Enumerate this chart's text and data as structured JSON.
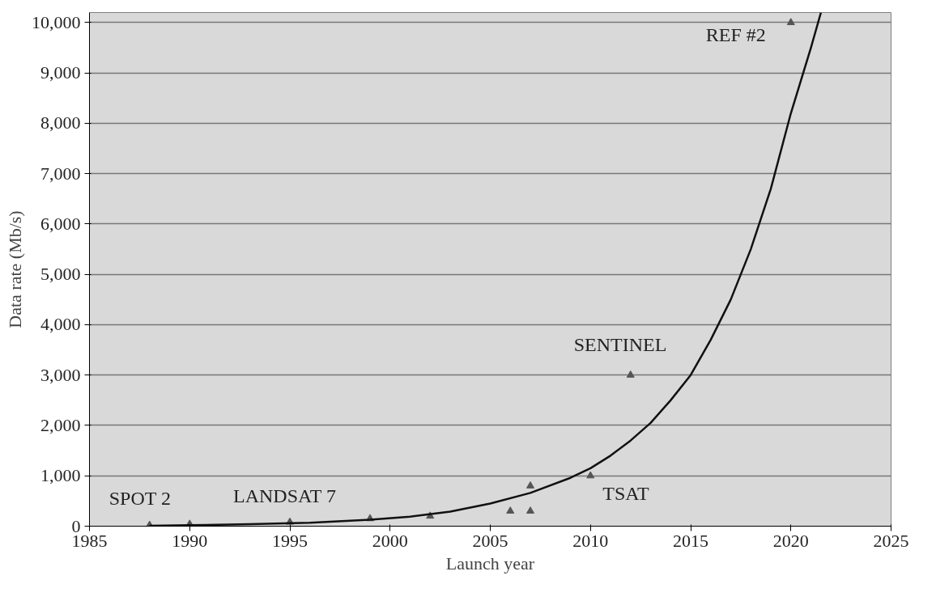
{
  "chart_data": {
    "type": "scatter",
    "xlabel": "Launch year",
    "ylabel": "Data rate (Mb/s)",
    "xlim": [
      1985,
      2025
    ],
    "xticks": [
      1985,
      1990,
      1995,
      2000,
      2005,
      2010,
      2015,
      2020,
      2025
    ],
    "ylim": [
      0,
      10200
    ],
    "yticks": [
      0,
      {
        "value": 1000,
        "label": "1,000"
      },
      {
        "value": 2000,
        "label": "2,000"
      },
      {
        "value": 3000,
        "label": "3,000"
      },
      {
        "value": 4000,
        "label": "4,000"
      },
      {
        "value": 5000,
        "label": "5,000"
      },
      {
        "value": 6000,
        "label": "6,000"
      },
      {
        "value": 7000,
        "label": "7,000"
      },
      {
        "value": 8000,
        "label": "8,000"
      },
      {
        "value": 9000,
        "label": "9,000"
      },
      {
        "value": 10000,
        "label": "10,000"
      }
    ],
    "grid": "y",
    "series": [
      {
        "marker": "triangle",
        "color": "#555555",
        "x": [
          1988,
          1990,
          1995,
          1999,
          2002,
          2006,
          2007,
          2007,
          2010,
          2012,
          2020
        ],
        "values": [
          20,
          40,
          80,
          150,
          200,
          300,
          800,
          300,
          1000,
          3000,
          10000
        ]
      },
      {
        "type": "line",
        "marker": "none",
        "line_style": "solid",
        "color": "#111111",
        "x": [
          1988,
          1990,
          1993,
          1996,
          1999,
          2001,
          2003,
          2005,
          2007,
          2009,
          2010,
          2011,
          2012,
          2013,
          2014,
          2015,
          2016,
          2017,
          2018,
          2019,
          2020,
          2021,
          2021.5
        ],
        "values": [
          10,
          20,
          40,
          70,
          130,
          190,
          290,
          450,
          660,
          960,
          1150,
          1400,
          1700,
          2050,
          2500,
          3000,
          3700,
          4500,
          5500,
          6700,
          8200,
          9500,
          10200
        ]
      }
    ],
    "annotations": [
      {
        "text": "SPOT 2",
        "x": 1988,
        "y": 20
      },
      {
        "text": "LANDSAT 7",
        "x": 1995,
        "y": 80
      },
      {
        "text": "TSAT",
        "x": 2010,
        "y": 1000
      },
      {
        "text": "SENTINEL",
        "x": 2012,
        "y": 3000
      },
      {
        "text": "REF #2",
        "x": 2020,
        "y": 10000
      }
    ]
  }
}
